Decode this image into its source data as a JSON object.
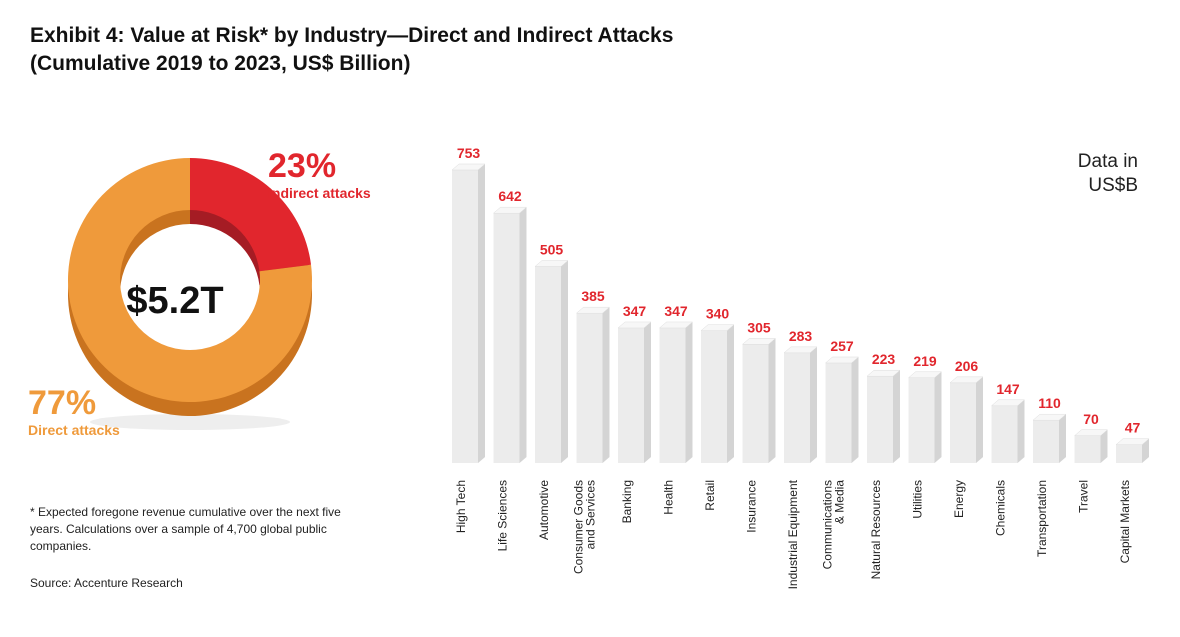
{
  "title": {
    "line1": "Exhibit 4: Value at Risk* by Industry—Direct and Indirect Attacks",
    "line2": "(Cumulative 2019 to 2023, US$ Billion)"
  },
  "donut": {
    "total": "$5.2T",
    "segments": [
      {
        "label": "Indirect attacks",
        "pct_text": "23%",
        "value": 23,
        "color": "#e1262d"
      },
      {
        "label": "Direct attacks",
        "pct_text": "77%",
        "value": 77,
        "color": "#ef9a3b"
      }
    ]
  },
  "unit_note": {
    "line1": "Data in",
    "line2": "US$B"
  },
  "footnote": "* Expected foregone revenue cumulative over the next five years. Calculations over a sample of 4,700 global public companies.",
  "source": "Source: Accenture Research",
  "colors": {
    "bar_front": "#ececec",
    "bar_side": "#d4d4d4",
    "bar_top": "#f7f7f7",
    "value_label": "#e1262d"
  },
  "chart_data": {
    "type": "bar",
    "categories": [
      "High Tech",
      "Life Sciences",
      "Automotive",
      "Consumer Goods\nand Services",
      "Banking",
      "Health",
      "Retail",
      "Insurance",
      "Industrial Equipment",
      "Communications\n& Media",
      "Natural Resources",
      "Utilities",
      "Energy",
      "Chemicals",
      "Transportation",
      "Travel",
      "Capital Markets"
    ],
    "values": [
      753,
      642,
      505,
      385,
      347,
      347,
      340,
      305,
      283,
      257,
      223,
      219,
      206,
      147,
      110,
      70,
      47
    ],
    "value_labels": [
      "753",
      "642",
      "505",
      "385",
      "347",
      "347",
      "340",
      "305",
      "283",
      "257",
      "223",
      "219",
      "206",
      "147",
      "110",
      "70",
      "47"
    ],
    "ylim": [
      0,
      753
    ]
  }
}
